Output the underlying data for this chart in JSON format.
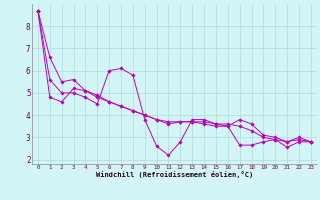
{
  "xlabel": "Windchill (Refroidissement éolien,°C)",
  "background_color": "#d4f5f5",
  "grid_color": "#aadddd",
  "line_color": "#bb00bb",
  "xlim": [
    -0.5,
    23.5
  ],
  "ylim": [
    1.8,
    9.0
  ],
  "yticks": [
    2,
    3,
    4,
    5,
    6,
    7,
    8
  ],
  "xticks": [
    0,
    1,
    2,
    3,
    4,
    5,
    6,
    7,
    8,
    9,
    10,
    11,
    12,
    13,
    14,
    15,
    16,
    17,
    18,
    19,
    20,
    21,
    22,
    23
  ],
  "lines": [
    {
      "x": [
        0,
        1,
        2,
        3,
        4,
        5,
        6,
        7,
        8,
        9,
        10,
        11,
        12,
        13,
        14,
        15,
        16,
        17,
        18,
        19,
        20,
        21,
        22,
        23
      ],
      "y": [
        8.7,
        6.6,
        5.5,
        5.6,
        5.1,
        4.9,
        4.6,
        4.4,
        4.2,
        4.0,
        3.8,
        3.7,
        3.7,
        3.7,
        3.7,
        3.6,
        3.6,
        3.5,
        3.3,
        3.0,
        2.9,
        2.8,
        2.9,
        2.8
      ]
    },
    {
      "x": [
        0,
        1,
        2,
        3,
        4,
        5,
        6,
        7,
        8,
        9,
        10,
        11,
        12,
        13,
        14,
        15,
        16,
        17,
        18,
        19,
        20,
        21,
        22,
        23
      ],
      "y": [
        8.7,
        5.6,
        5.0,
        5.0,
        4.8,
        4.5,
        6.0,
        6.1,
        5.8,
        3.8,
        2.6,
        2.2,
        2.8,
        3.8,
        3.8,
        3.6,
        3.5,
        2.65,
        2.65,
        2.8,
        2.9,
        2.55,
        2.8,
        2.8
      ]
    },
    {
      "x": [
        0,
        1,
        2,
        3,
        4,
        5,
        6,
        7,
        8,
        9,
        10,
        11,
        12,
        13,
        14,
        15,
        16,
        17,
        18,
        19,
        20,
        21,
        22,
        23
      ],
      "y": [
        8.7,
        4.8,
        4.6,
        5.2,
        5.1,
        4.8,
        4.6,
        4.4,
        4.2,
        4.0,
        3.8,
        3.6,
        3.7,
        3.7,
        3.6,
        3.5,
        3.5,
        3.8,
        3.6,
        3.1,
        3.0,
        2.8,
        3.0,
        2.8
      ]
    }
  ]
}
